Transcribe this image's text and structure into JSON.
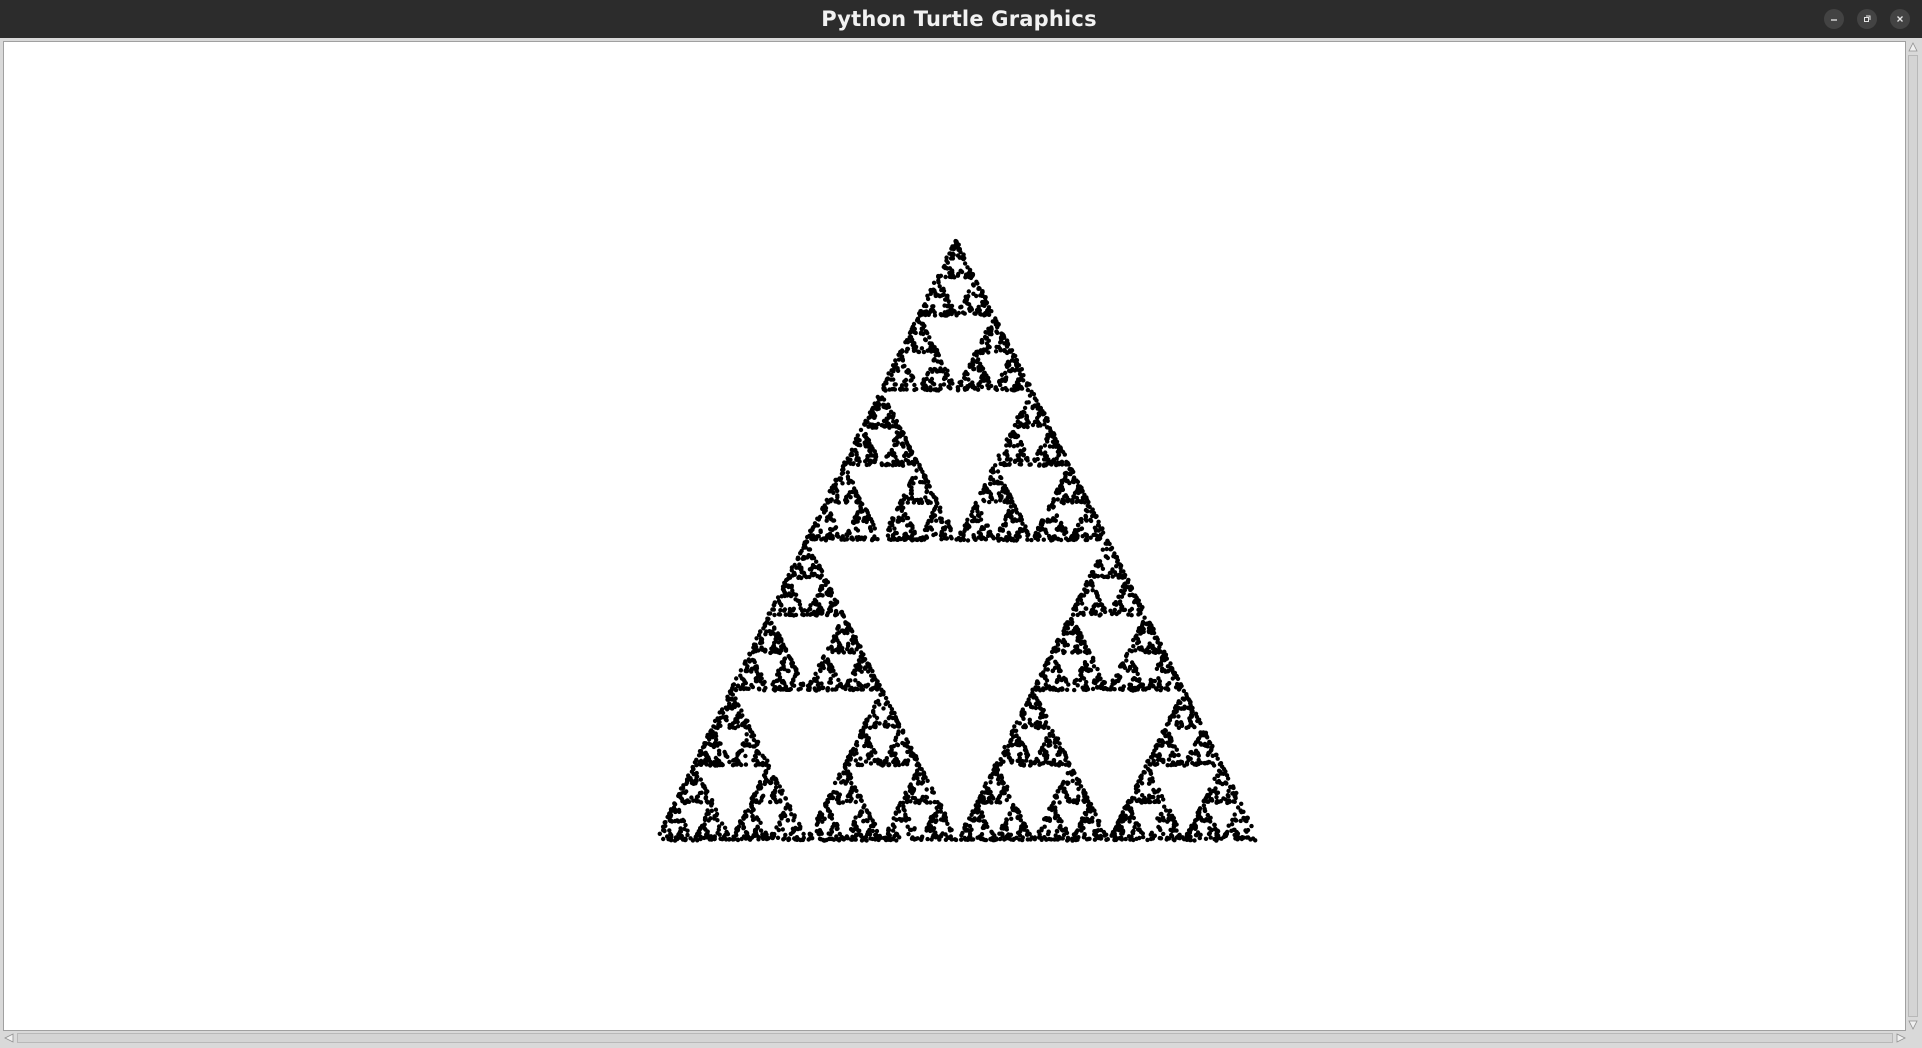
{
  "window": {
    "title": "Python Turtle Graphics",
    "controls": {
      "minimize_icon": "minimize-icon",
      "maximize_icon": "maximize-icon",
      "close_icon": "close-icon"
    }
  },
  "canvas": {
    "background": "#ffffff",
    "dot_color": "#000000",
    "figure": "sierpinski-triangle-dots"
  },
  "colors": {
    "titlebar": "#2c2c2c",
    "frame": "#d9d9d9"
  }
}
